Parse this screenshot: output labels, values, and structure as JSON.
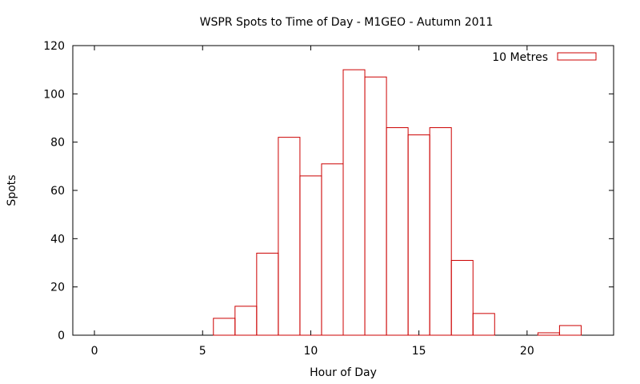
{
  "chart_data": {
    "type": "bar",
    "title": "WSPR Spots to Time of Day - M1GEO - Autumn 2011",
    "xlabel": "Hour of Day",
    "ylabel": "Spots",
    "xlim": [
      -1,
      24
    ],
    "ylim": [
      0,
      120
    ],
    "xticks": [
      0,
      5,
      10,
      15,
      20
    ],
    "yticks": [
      0,
      20,
      40,
      60,
      80,
      100,
      120
    ],
    "grid": false,
    "legend_position": "top-right",
    "bar_color": "#cc0000",
    "series": [
      {
        "name": "10 Metres",
        "x": [
          6,
          7,
          8,
          9,
          10,
          11,
          12,
          13,
          14,
          15,
          16,
          17,
          18,
          21,
          22
        ],
        "values": [
          7,
          12,
          34,
          82,
          66,
          71,
          110,
          107,
          86,
          83,
          86,
          31,
          9,
          1,
          4
        ]
      }
    ]
  }
}
